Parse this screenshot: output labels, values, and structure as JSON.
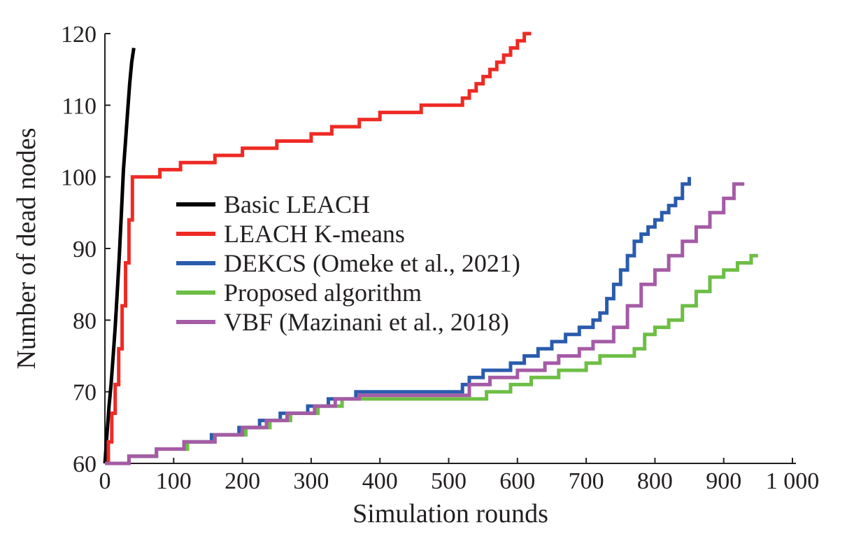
{
  "chart_data": {
    "type": "line",
    "title": "",
    "xlabel": "Simulation rounds",
    "ylabel": "Number of dead nodes",
    "xlim": [
      0,
      1000
    ],
    "ylim": [
      60,
      120
    ],
    "xticks": [
      0,
      100,
      200,
      300,
      400,
      500,
      600,
      700,
      800,
      900,
      1000
    ],
    "xtick_labels": [
      "0",
      "100",
      "200",
      "300",
      "400",
      "500",
      "600",
      "700",
      "800",
      "900",
      "1 000"
    ],
    "yticks": [
      60,
      70,
      80,
      90,
      100,
      110,
      120
    ],
    "ytick_labels": [
      "60",
      "70",
      "80",
      "90",
      "100",
      "110",
      "120"
    ],
    "grid": false,
    "legend_position": "center-left",
    "series": [
      {
        "name": "Basic LEACH",
        "color": "#000000",
        "x": [
          0,
          3,
          6,
          9,
          12,
          15,
          18,
          21,
          24,
          27,
          30,
          33,
          36,
          39,
          42
        ],
        "y": [
          60,
          64,
          68,
          71,
          75,
          79,
          84,
          89,
          95,
          101,
          105,
          109,
          113,
          116,
          118
        ]
      },
      {
        "name": "LEACH K-means",
        "color": "#ee2a24",
        "x": [
          0,
          5,
          10,
          15,
          20,
          25,
          30,
          35,
          40,
          45,
          80,
          110,
          160,
          200,
          250,
          300,
          330,
          370,
          400,
          460,
          510,
          520,
          530,
          540,
          550,
          560,
          570,
          580,
          590,
          600,
          610,
          620
        ],
        "y": [
          60,
          63,
          67,
          71,
          76,
          82,
          88,
          94,
          100,
          100,
          101,
          102,
          103,
          104,
          105,
          106,
          107,
          108,
          109,
          110,
          110,
          111,
          112,
          113,
          114,
          115,
          116,
          117,
          118,
          119,
          120,
          120
        ],
        "step": true
      },
      {
        "name": "DEKCS (Omeke et al., 2021)",
        "color": "#2a5cad",
        "x": [
          0,
          35,
          75,
          115,
          155,
          195,
          225,
          255,
          295,
          325,
          365,
          520,
          530,
          550,
          590,
          610,
          630,
          650,
          670,
          690,
          710,
          720,
          730,
          740,
          750,
          760,
          770,
          780,
          790,
          800,
          810,
          820,
          830,
          840,
          850
        ],
        "y": [
          60,
          61,
          62,
          63,
          64,
          65,
          66,
          67,
          68,
          69,
          70,
          71,
          72,
          73,
          74,
          75,
          76,
          77,
          78,
          79,
          80,
          81,
          83,
          85,
          87,
          89,
          91,
          92,
          93,
          94,
          95,
          96,
          97,
          99,
          100
        ],
        "step": true
      },
      {
        "name": "Proposed algorithm",
        "color": "#6dbe45",
        "x": [
          0,
          35,
          75,
          120,
          160,
          205,
          240,
          270,
          310,
          345,
          390,
          555,
          590,
          620,
          660,
          700,
          720,
          770,
          785,
          800,
          820,
          840,
          860,
          880,
          900,
          920,
          940,
          950
        ],
        "y": [
          60,
          61,
          62,
          63,
          64,
          65,
          66,
          67,
          68,
          69,
          69,
          70,
          71,
          72,
          73,
          74,
          75,
          76,
          78,
          79,
          80,
          82,
          84,
          86,
          87,
          88,
          89,
          89
        ],
        "step": true
      },
      {
        "name": "VBF (Mazinani et al., 2018)",
        "color": "#a55ba6",
        "x": [
          0,
          35,
          75,
          115,
          160,
          200,
          235,
          265,
          305,
          335,
          370,
          530,
          560,
          600,
          640,
          660,
          690,
          710,
          740,
          760,
          780,
          800,
          820,
          840,
          860,
          880,
          900,
          915,
          930
        ],
        "y": [
          60,
          61,
          62,
          63,
          64,
          65,
          66,
          67,
          68,
          69,
          69.5,
          71,
          72,
          73,
          74,
          75,
          76,
          77,
          79,
          82,
          85,
          87,
          89,
          91,
          93,
          95,
          97,
          99,
          99
        ],
        "step": true
      }
    ]
  }
}
